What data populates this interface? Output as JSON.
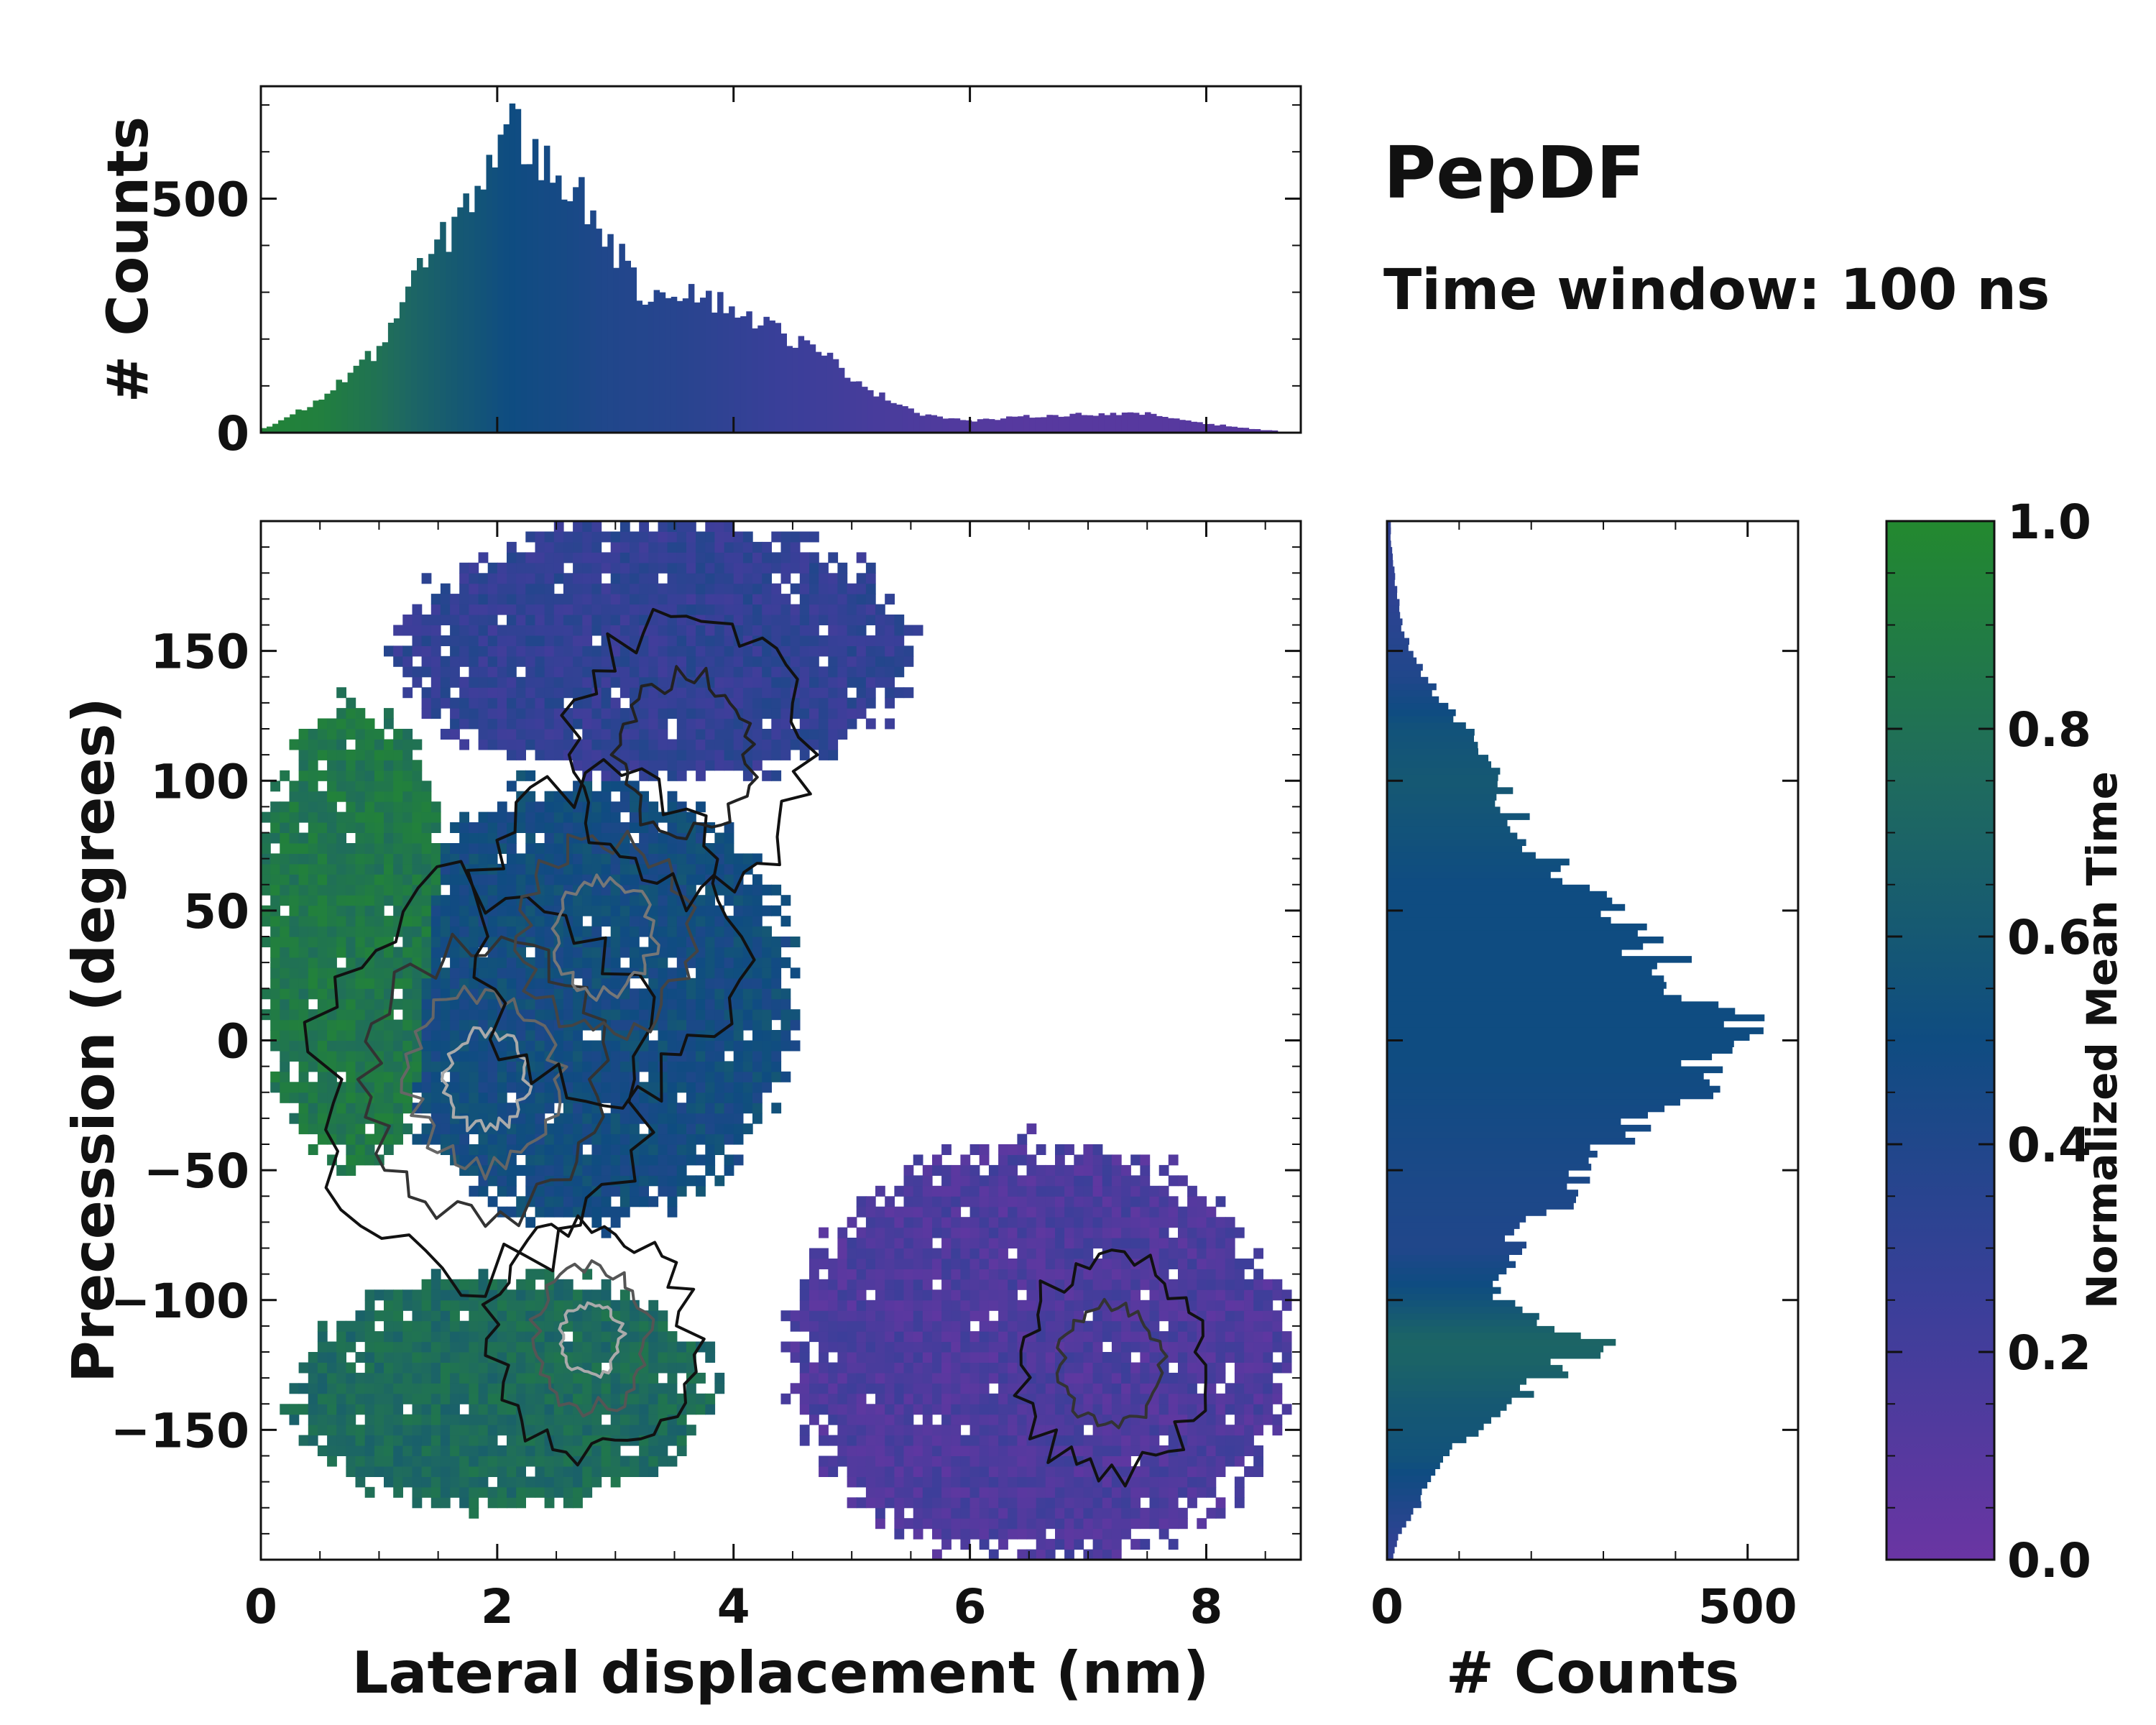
{
  "chart_data": {
    "type": "joint-heatmap",
    "title": "PepDF",
    "subtitle": "Time window: 100 ns",
    "main": {
      "type": "heatmap",
      "xlabel": "Lateral displacement (nm)",
      "ylabel": "Precession (degrees)",
      "xlim": [
        0,
        8.8
      ],
      "ylim": [
        -200,
        200
      ],
      "xticks": [
        0,
        2,
        4,
        6,
        8
      ],
      "yticks": [
        150,
        100,
        50,
        0,
        -50,
        -100,
        -150
      ],
      "ytick_labels": [
        "150",
        "100",
        "50",
        "0",
        "−50",
        "−100",
        "−150"
      ],
      "color_value": "normalized mean time",
      "regions": [
        {
          "name": "left green cluster",
          "x_range": [
            0,
            1.6
          ],
          "y_range": [
            -50,
            130
          ],
          "mean_time": 0.85
        },
        {
          "name": "central dense core",
          "x_range": [
            1.0,
            4.5
          ],
          "y_range": [
            -70,
            100
          ],
          "mean_time": 0.5
        },
        {
          "name": "upper arm",
          "x_range": [
            1.2,
            5.5
          ],
          "y_range": [
            100,
            200
          ],
          "mean_time": 0.3
        },
        {
          "name": "lower green cluster",
          "x_range": [
            0.3,
            3.8
          ],
          "y_range": [
            -180,
            -90
          ],
          "mean_time": 0.75
        },
        {
          "name": "lower right tail",
          "x_range": [
            4.5,
            8.7
          ],
          "y_range": [
            -200,
            -40
          ],
          "mean_time": 0.15
        }
      ]
    },
    "top_histogram": {
      "type": "bar",
      "ylabel": "# Counts",
      "yticks": [
        0,
        500
      ],
      "ylim": [
        0,
        740
      ],
      "x": [
        0.05,
        0.5,
        1.0,
        1.3,
        1.6,
        1.9,
        2.1,
        2.3,
        2.6,
        2.9,
        3.2,
        3.6,
        4.0,
        4.4,
        4.8,
        5.2,
        5.6,
        6.0,
        6.5,
        7.0,
        7.5,
        8.0,
        8.5
      ],
      "counts": [
        10,
        70,
        180,
        330,
        430,
        560,
        665,
        590,
        540,
        440,
        300,
        310,
        265,
        215,
        160,
        85,
        40,
        25,
        35,
        40,
        40,
        20,
        5
      ],
      "time_colors": [
        0.95,
        0.92,
        0.8,
        0.7,
        0.62,
        0.55,
        0.5,
        0.48,
        0.45,
        0.4,
        0.38,
        0.35,
        0.3,
        0.25,
        0.22,
        0.18,
        0.15,
        0.12,
        0.1,
        0.1,
        0.1,
        0.1,
        0.1
      ]
    },
    "right_histogram": {
      "type": "barh",
      "xlabel": "# Counts",
      "xticks": [
        0,
        500
      ],
      "xlim": [
        0,
        570
      ],
      "y": [
        195,
        180,
        160,
        140,
        120,
        100,
        80,
        60,
        40,
        20,
        5,
        -5,
        -20,
        -40,
        -60,
        -80,
        -100,
        -115,
        -125,
        -140,
        -160,
        -180,
        -195
      ],
      "counts": [
        5,
        10,
        20,
        50,
        110,
        150,
        190,
        260,
        340,
        430,
        500,
        480,
        410,
        320,
        250,
        170,
        150,
        290,
        250,
        160,
        80,
        40,
        10
      ],
      "time_colors": [
        0.3,
        0.3,
        0.35,
        0.4,
        0.55,
        0.6,
        0.55,
        0.5,
        0.5,
        0.5,
        0.5,
        0.5,
        0.48,
        0.45,
        0.42,
        0.4,
        0.55,
        0.7,
        0.68,
        0.6,
        0.55,
        0.4,
        0.3
      ]
    },
    "colorbar": {
      "label": "Normalized Mean Time",
      "ticks": [
        1.0,
        0.8,
        0.6,
        0.4,
        0.2,
        0.0
      ],
      "tick_labels": [
        "1.0",
        "0.8",
        "0.6",
        "0.4",
        "0.2",
        "0.0"
      ],
      "range": [
        0,
        1
      ],
      "colors": [
        "#6a35a3",
        "#3a3f99",
        "#0f4c81",
        "#1f6b5e",
        "#23892f"
      ]
    }
  }
}
